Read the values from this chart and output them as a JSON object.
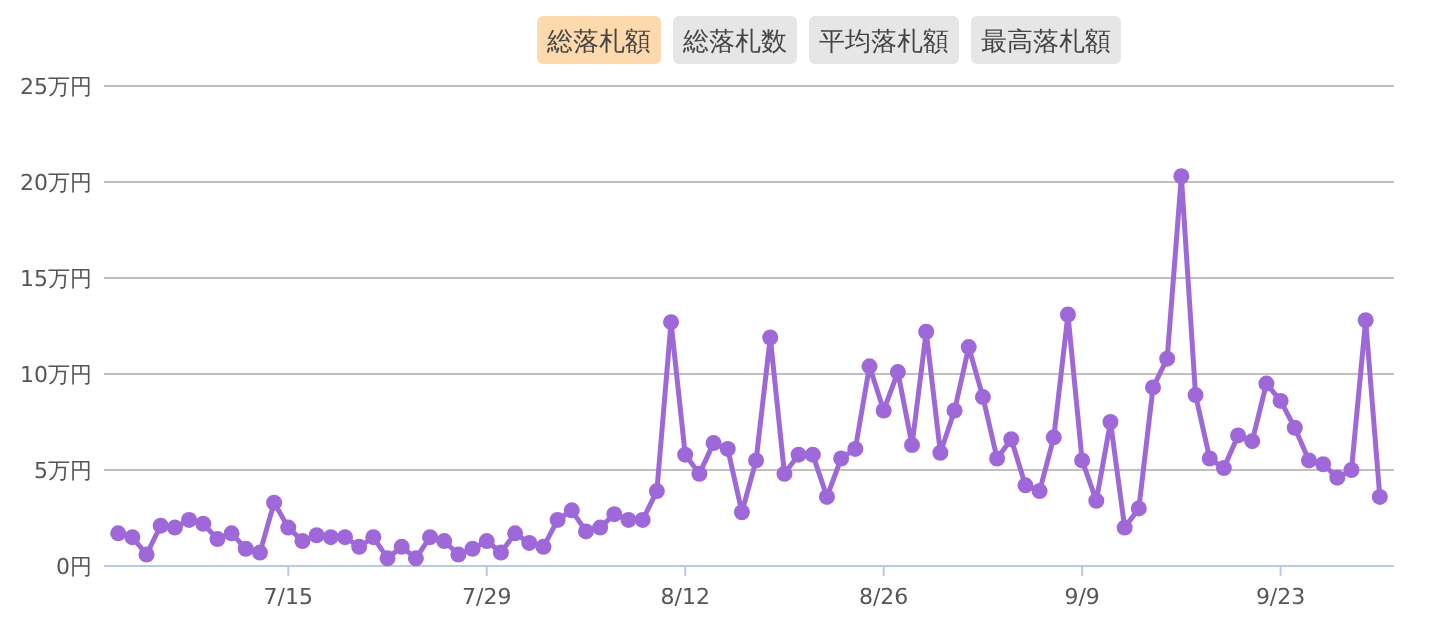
{
  "chart_data": {
    "type": "line",
    "legend": "top",
    "marker": "circle",
    "grid": "y",
    "annotations": [
      "総落札数",
      "平均落札額",
      "最高落札額"
    ],
    "ylim": [
      0,
      25
    ],
    "yticks": [
      {
        "value": 0,
        "label": "0円"
      },
      {
        "value": 5,
        "label": "5万円"
      },
      {
        "value": 10,
        "label": "10万円"
      },
      {
        "value": 15,
        "label": "15万円"
      },
      {
        "value": 20,
        "label": "20万円"
      },
      {
        "value": 25,
        "label": "25万円"
      }
    ],
    "xlim": [
      "--07-02",
      "--10-01"
    ],
    "xticks": [
      {
        "value": "--07-15",
        "label": "7/15"
      },
      {
        "value": "--07-29",
        "label": "7/29"
      },
      {
        "value": "--08-12",
        "label": "8/12"
      },
      {
        "value": "--08-26",
        "label": "8/26"
      },
      {
        "value": "--09-09",
        "label": "9/9"
      },
      {
        "value": "--09-23",
        "label": "9/23"
      }
    ],
    "series": [
      {
        "name": "総落札額",
        "color": "#9f68d8",
        "x": [
          "--07-03",
          "--07-04",
          "--07-05",
          "--07-06",
          "--07-07",
          "--07-08",
          "--07-09",
          "--07-10",
          "--07-11",
          "--07-12",
          "--07-13",
          "--07-14",
          "--07-15",
          "--07-16",
          "--07-17",
          "--07-18",
          "--07-19",
          "--07-20",
          "--07-21",
          "--07-22",
          "--07-23",
          "--07-24",
          "--07-25",
          "--07-26",
          "--07-27",
          "--07-28",
          "--07-29",
          "--07-30",
          "--07-31",
          "--08-01",
          "--08-02",
          "--08-03",
          "--08-04",
          "--08-05",
          "--08-06",
          "--08-07",
          "--08-08",
          "--08-09",
          "--08-10",
          "--08-11",
          "--08-12",
          "--08-13",
          "--08-14",
          "--08-15",
          "--08-16",
          "--08-17",
          "--08-18",
          "--08-19",
          "--08-20",
          "--08-21",
          "--08-22",
          "--08-23",
          "--08-24",
          "--08-25",
          "--08-26",
          "--08-27",
          "--08-28",
          "--08-29",
          "--08-30",
          "--08-31",
          "--09-01",
          "--09-02",
          "--09-03",
          "--09-04",
          "--09-05",
          "--09-06",
          "--09-07",
          "--09-08",
          "--09-09",
          "--09-10",
          "--09-11",
          "--09-12",
          "--09-13",
          "--09-14",
          "--09-15",
          "--09-16",
          "--09-17",
          "--09-18",
          "--09-19",
          "--09-20",
          "--09-21",
          "--09-22",
          "--09-23",
          "--09-24",
          "--09-25",
          "--09-26",
          "--09-27",
          "--09-28",
          "--09-29",
          "--09-30"
        ],
        "values": [
          1.7,
          1.5,
          0.6,
          2.1,
          2.0,
          2.4,
          2.2,
          1.4,
          1.7,
          0.9,
          0.7,
          3.3,
          2.0,
          1.3,
          1.6,
          1.5,
          1.5,
          1.0,
          1.5,
          0.4,
          1.0,
          0.4,
          1.5,
          1.3,
          0.6,
          0.9,
          1.3,
          0.7,
          1.7,
          1.2,
          1.0,
          2.4,
          2.9,
          1.8,
          2.0,
          2.7,
          2.4,
          2.4,
          3.9,
          12.7,
          5.8,
          4.8,
          6.4,
          6.1,
          2.8,
          5.5,
          11.9,
          4.8,
          5.8,
          5.8,
          3.6,
          5.6,
          6.1,
          10.4,
          8.1,
          10.1,
          6.3,
          12.2,
          5.9,
          8.1,
          11.4,
          8.8,
          5.6,
          6.6,
          4.2,
          3.9,
          6.7,
          13.1,
          5.5,
          3.4,
          7.5,
          2.0,
          3.0,
          9.3,
          10.8,
          20.3,
          8.9,
          5.6,
          5.1,
          6.8,
          6.5,
          9.5,
          8.6,
          7.2,
          5.5,
          5.3,
          4.6,
          5.0,
          12.8,
          3.6
        ]
      }
    ]
  }
}
